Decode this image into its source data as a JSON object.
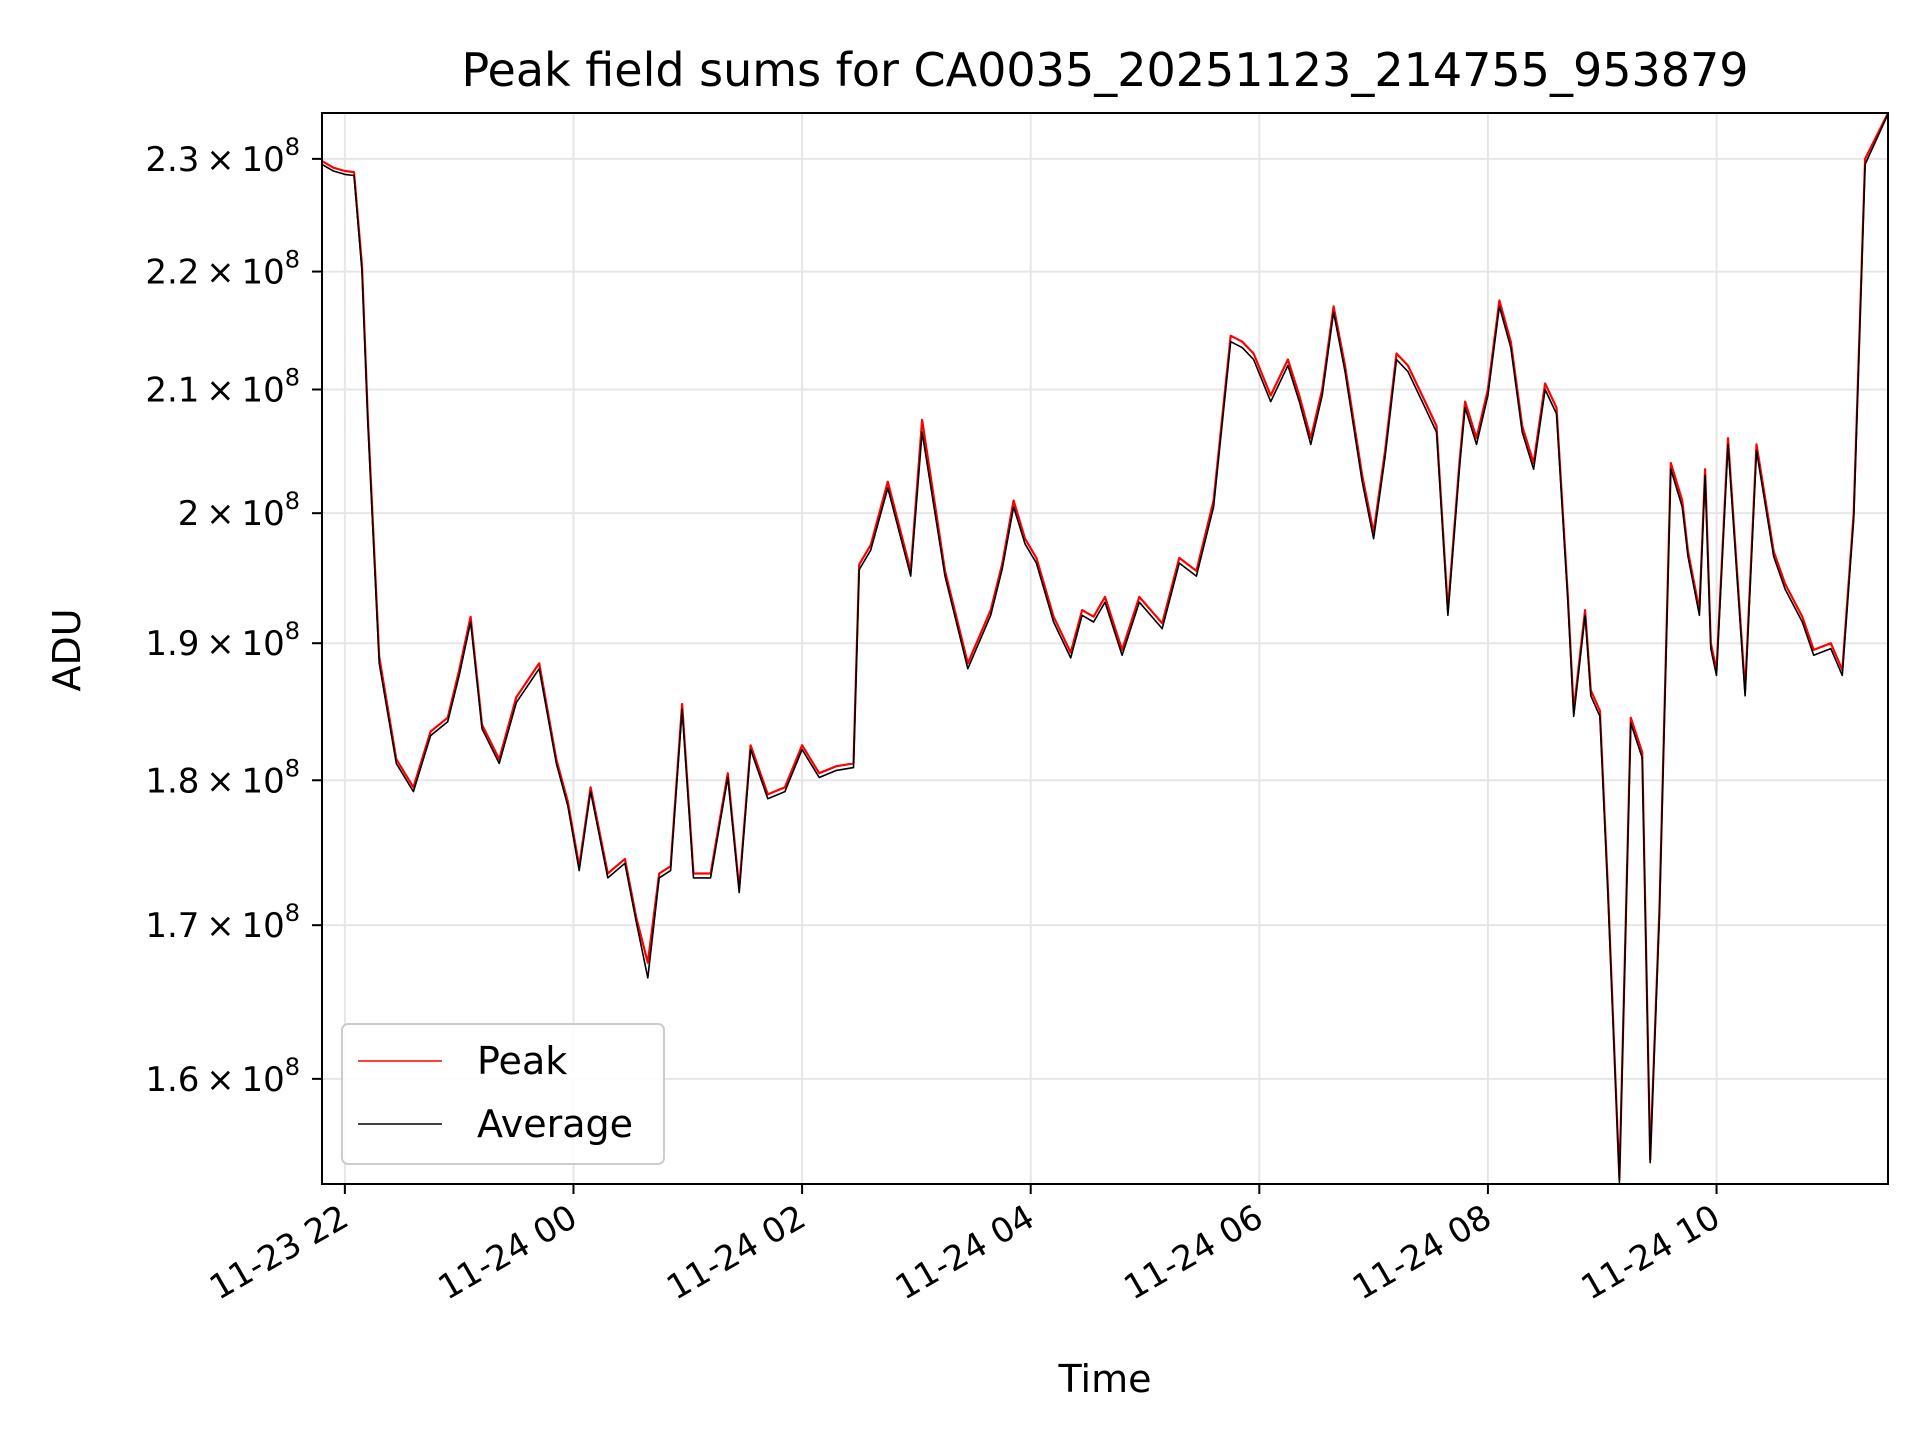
{
  "chart_data": {
    "type": "line",
    "title": "Peak field sums for CA0035_20251123_214755_953879",
    "xlabel": "Time",
    "ylabel": "ADU",
    "x_unit": "hours since 11-23 00:00",
    "xlim": [
      21.8,
      35.5
    ],
    "ylim": [
      153500000.0,
      234200000.0
    ],
    "y_scale": "log",
    "grid": true,
    "legend_position": "lower-left",
    "x_ticks": [
      {
        "value": 22,
        "label": "11-23 22"
      },
      {
        "value": 24,
        "label": "11-24 00"
      },
      {
        "value": 26,
        "label": "11-24 02"
      },
      {
        "value": 28,
        "label": "11-24 04"
      },
      {
        "value": 30,
        "label": "11-24 06"
      },
      {
        "value": 32,
        "label": "11-24 08"
      },
      {
        "value": 34,
        "label": "11-24 10"
      }
    ],
    "y_ticks": [
      {
        "value": 160000000.0,
        "mantissa": "1.6",
        "exponent": "8"
      },
      {
        "value": 170000000.0,
        "mantissa": "1.7",
        "exponent": "8"
      },
      {
        "value": 180000000.0,
        "mantissa": "1.8",
        "exponent": "8"
      },
      {
        "value": 190000000.0,
        "mantissa": "1.9",
        "exponent": "8"
      },
      {
        "value": 200000000.0,
        "mantissa": "2",
        "exponent": "8"
      },
      {
        "value": 210000000.0,
        "mantissa": "2.1",
        "exponent": "8"
      },
      {
        "value": 220000000.0,
        "mantissa": "2.2",
        "exponent": "8"
      },
      {
        "value": 230000000.0,
        "mantissa": "2.3",
        "exponent": "8"
      }
    ],
    "x": [
      21.8,
      21.9,
      22.0,
      22.08,
      22.15,
      22.2,
      22.3,
      22.45,
      22.6,
      22.75,
      22.9,
      23.0,
      23.1,
      23.2,
      23.35,
      23.5,
      23.7,
      23.85,
      23.95,
      24.05,
      24.15,
      24.3,
      24.45,
      24.55,
      24.65,
      24.75,
      24.85,
      24.95,
      25.05,
      25.2,
      25.35,
      25.45,
      25.55,
      25.7,
      25.85,
      26.0,
      26.15,
      26.3,
      26.45,
      26.5,
      26.6,
      26.75,
      26.95,
      27.05,
      27.25,
      27.45,
      27.65,
      27.75,
      27.85,
      27.95,
      28.05,
      28.2,
      28.35,
      28.45,
      28.55,
      28.65,
      28.8,
      28.95,
      29.15,
      29.3,
      29.45,
      29.6,
      29.75,
      29.85,
      29.95,
      30.1,
      30.25,
      30.35,
      30.45,
      30.55,
      30.65,
      30.75,
      30.9,
      31.0,
      31.1,
      31.2,
      31.3,
      31.45,
      31.55,
      31.65,
      31.75,
      31.8,
      31.9,
      32.0,
      32.1,
      32.2,
      32.3,
      32.4,
      32.5,
      32.6,
      32.7,
      32.75,
      32.85,
      32.9,
      32.98,
      33.05,
      33.15,
      33.25,
      33.35,
      33.42,
      33.5,
      33.6,
      33.7,
      33.75,
      33.85,
      33.9,
      33.95,
      34.0,
      34.1,
      34.25,
      34.35,
      34.5,
      34.6,
      34.75,
      34.85,
      35.0,
      35.1,
      35.2,
      35.3,
      35.5
    ],
    "series": [
      {
        "name": "Peak",
        "color": "#ff0000",
        "values": [
          229800000.0,
          229200000.0,
          228900000.0,
          228800000.0,
          220500000.0,
          208000000.0,
          189000000.0,
          181500000.0,
          179500000.0,
          183500000.0,
          184500000.0,
          188000000.0,
          192000000.0,
          184000000.0,
          181500000.0,
          186000000.0,
          188500000.0,
          181500000.0,
          178500000.0,
          174000000.0,
          179500000.0,
          173500000.0,
          174500000.0,
          170500000.0,
          167500000.0,
          173500000.0,
          174000000.0,
          185500000.0,
          173500000.0,
          173500000.0,
          180500000.0,
          172500000.0,
          182500000.0,
          179000000.0,
          179500000.0,
          182500000.0,
          180500000.0,
          181000000.0,
          181200000.0,
          196000000.0,
          197500000.0,
          202500000.0,
          195500000.0,
          207500000.0,
          195500000.0,
          188500000.0,
          192500000.0,
          196000000.0,
          201000000.0,
          198000000.0,
          196500000.0,
          192000000.0,
          189300000.0,
          192500000.0,
          192000000.0,
          193500000.0,
          189500000.0,
          193500000.0,
          191500000.0,
          196500000.0,
          195500000.0,
          201000000.0,
          214500000.0,
          214000000.0,
          213000000.0,
          209500000.0,
          212500000.0,
          209500000.0,
          206000000.0,
          210000000.0,
          217000000.0,
          212000000.0,
          203000000.0,
          198500000.0,
          205000000.0,
          213000000.0,
          212000000.0,
          209000000.0,
          207000000.0,
          192500000.0,
          204000000.0,
          209000000.0,
          206000000.0,
          210000000.0,
          217500000.0,
          214000000.0,
          207000000.0,
          204000000.0,
          210500000.0,
          208500000.0,
          193500000.0,
          185000000.0,
          192500000.0,
          186500000.0,
          185000000.0,
          172500000.0,
          153800000.0,
          184500000.0,
          182000000.0,
          155000000.0,
          171000000.0,
          204000000.0,
          201000000.0,
          197000000.0,
          192500000.0,
          203500000.0,
          190000000.0,
          188000000.0,
          206000000.0,
          186500000.0,
          205500000.0,
          197000000.0,
          194500000.0,
          192000000.0,
          189500000.0,
          190000000.0,
          188000000.0,
          200000000.0,
          230000000.0,
          234200000.0
        ]
      },
      {
        "name": "Average",
        "color": "#000000",
        "values": [
          229500000.0,
          228900000.0,
          228600000.0,
          228500000.0,
          220000000.0,
          207500000.0,
          188500000.0,
          181200000.0,
          179200000.0,
          183200000.0,
          184200000.0,
          187600000.0,
          191600000.0,
          183700000.0,
          181200000.0,
          185600000.0,
          188100000.0,
          181200000.0,
          178200000.0,
          173700000.0,
          179200000.0,
          173200000.0,
          174200000.0,
          170200000.0,
          166500000.0,
          173200000.0,
          173700000.0,
          185100000.0,
          173200000.0,
          173200000.0,
          180200000.0,
          172200000.0,
          182200000.0,
          178700000.0,
          179200000.0,
          182200000.0,
          180200000.0,
          180700000.0,
          180900000.0,
          195600000.0,
          197100000.0,
          202000000.0,
          195100000.0,
          206500000.0,
          195100000.0,
          188100000.0,
          192100000.0,
          195600000.0,
          200500000.0,
          197600000.0,
          196100000.0,
          191600000.0,
          188900000.0,
          192100000.0,
          191600000.0,
          193100000.0,
          189100000.0,
          193100000.0,
          191100000.0,
          196100000.0,
          195100000.0,
          200500000.0,
          214000000.0,
          213500000.0,
          212500000.0,
          209000000.0,
          212000000.0,
          209000000.0,
          205500000.0,
          209500000.0,
          216500000.0,
          211500000.0,
          202500000.0,
          198000000.0,
          204500000.0,
          212500000.0,
          211500000.0,
          208500000.0,
          206500000.0,
          192100000.0,
          203500000.0,
          208500000.0,
          205500000.0,
          209500000.0,
          217000000.0,
          213500000.0,
          206500000.0,
          203500000.0,
          210000000.0,
          208000000.0,
          193100000.0,
          184600000.0,
          192100000.0,
          186100000.0,
          184600000.0,
          172100000.0,
          153600000.0,
          184100000.0,
          181600000.0,
          154800000.0,
          170600000.0,
          203500000.0,
          200500000.0,
          196600000.0,
          192100000.0,
          203000000.0,
          189600000.0,
          187600000.0,
          205500000.0,
          186100000.0,
          205000000.0,
          196600000.0,
          194100000.0,
          191600000.0,
          189100000.0,
          189600000.0,
          187600000.0,
          199500000.0,
          229500000.0,
          234100000.0
        ]
      }
    ]
  }
}
